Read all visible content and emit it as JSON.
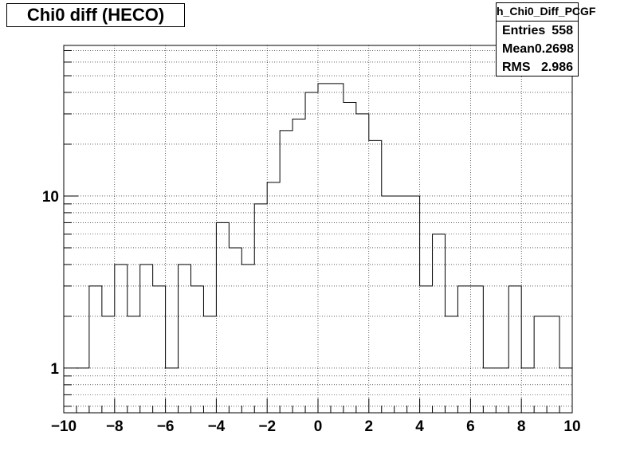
{
  "title": "Chi0 diff (HECO)",
  "stats": {
    "name": "h_Chi0_Diff_PCGF",
    "rows": [
      {
        "label": "Entries",
        "value": "558"
      },
      {
        "label": "Mean",
        "value": "0.2698"
      },
      {
        "label": "RMS",
        "value": "2.986"
      }
    ]
  },
  "chart_data": {
    "type": "histogram",
    "title": "Chi0 diff (HECO)",
    "xlabel": "",
    "ylabel": "",
    "xlim": [
      -10,
      10
    ],
    "ylim": [
      0.55,
      75
    ],
    "y_scale": "log",
    "grid": true,
    "x_ticks": [
      -10,
      -8,
      -6,
      -4,
      -2,
      0,
      2,
      4,
      6,
      8,
      10
    ],
    "x_tick_labels": [
      "−10",
      "−8",
      "−6",
      "−4",
      "−2",
      "0",
      "2",
      "4",
      "6",
      "8",
      "10"
    ],
    "y_ticks": [
      1,
      10
    ],
    "y_tick_labels": [
      "1",
      "10"
    ],
    "bin_edges": [
      -10,
      -9.5,
      -9,
      -8.5,
      -8,
      -7.5,
      -7,
      -6.5,
      -6,
      -5.5,
      -5,
      -4.5,
      -4,
      -3.5,
      -3,
      -2.5,
      -2,
      -1.5,
      -1,
      -0.5,
      0,
      0.5,
      1,
      1.5,
      2,
      2.5,
      3,
      3.5,
      4,
      4.5,
      5,
      5.5,
      6,
      6.5,
      7,
      7.5,
      8,
      8.5,
      9,
      9.5,
      10
    ],
    "counts": [
      0,
      1,
      3,
      2,
      4,
      2,
      4,
      3,
      1,
      4,
      3,
      2,
      7,
      5,
      4,
      9,
      12,
      24,
      28,
      40,
      45,
      45,
      35,
      30,
      21,
      10,
      10,
      10,
      3,
      6,
      2,
      3,
      3,
      1,
      1,
      3,
      1,
      2,
      2,
      1
    ]
  }
}
